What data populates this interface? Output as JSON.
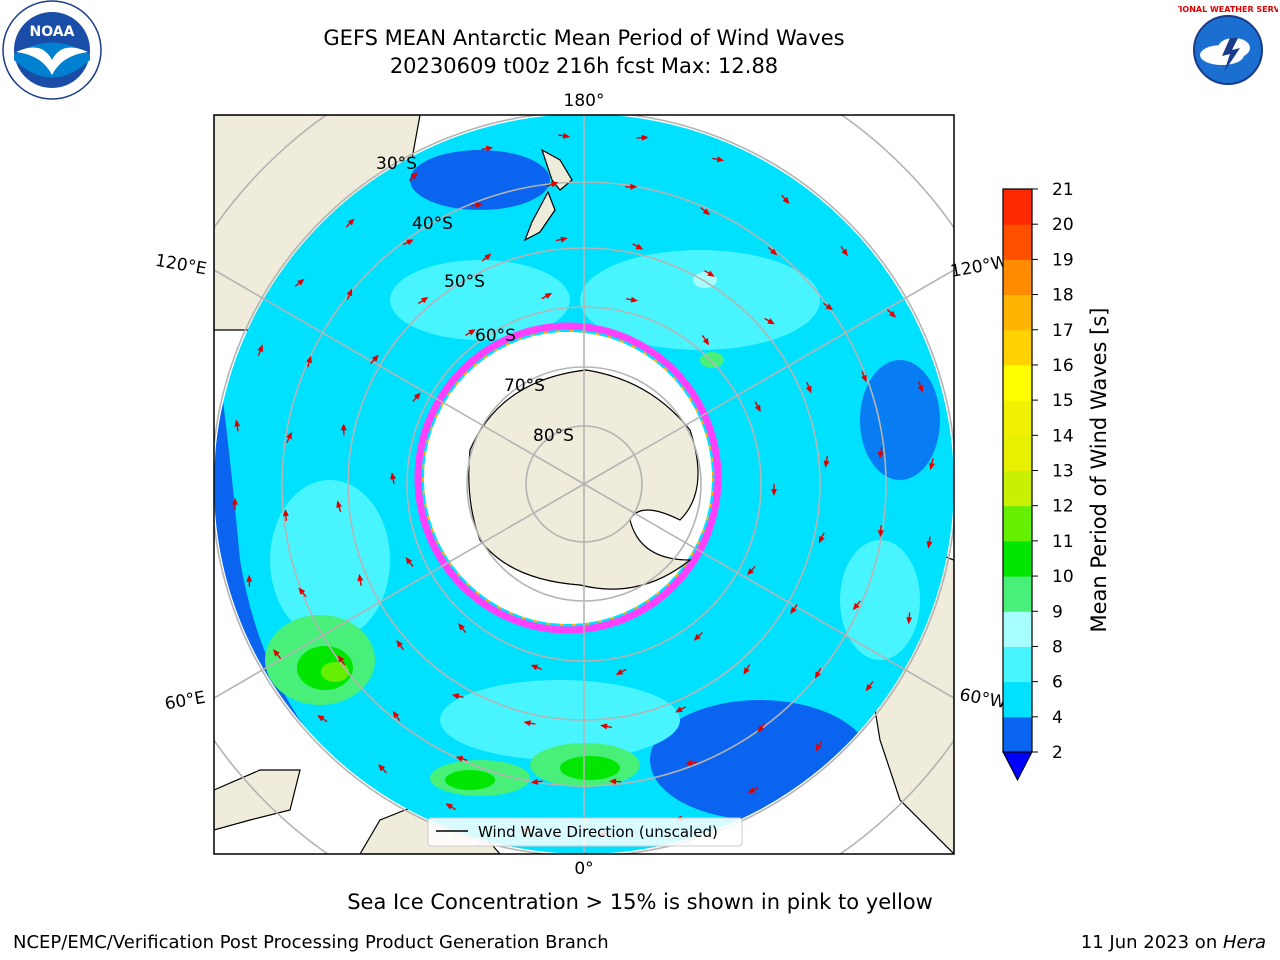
{
  "title": {
    "line1": "GEFS MEAN Antarctic Mean Period of Wind Waves",
    "line2": "20230609 t00z 216h fcst   Max: 12.88"
  },
  "map": {
    "projection": "south-polar-stereographic",
    "longitude_labels": [
      "180°",
      "120°E",
      "120°W",
      "60°E",
      "60°W",
      "0°"
    ],
    "latitude_labels": [
      "30°S",
      "40°S",
      "50°S",
      "60°S",
      "70°S",
      "80°S"
    ],
    "legend_label": "Wind Wave Direction (unscaled)",
    "sea_ice_note": "Sea Ice Concentration > 15% is shown in pink to yellow",
    "colors": {
      "land": "#efecdb",
      "ice_sheet": "#ffffff",
      "arrows": "#e00000",
      "grid": "#b4b4b4"
    }
  },
  "colorbar": {
    "label": "Mean Period of Wind Waves [s]",
    "ticks": [
      "2",
      "4",
      "6",
      "8",
      "9",
      "10",
      "11",
      "12",
      "13",
      "14",
      "15",
      "16",
      "17",
      "18",
      "19",
      "20",
      "21"
    ],
    "colors": [
      "#0a64f0",
      "#00e1ff",
      "#48f5ff",
      "#a8ffff",
      "#48f07a",
      "#00e600",
      "#64f000",
      "#c8f000",
      "#e6f000",
      "#f0f000",
      "#ffff00",
      "#ffd200",
      "#ffb400",
      "#ff8c00",
      "#ff5000",
      "#ff2800",
      "#f00000"
    ],
    "extend_color": "#0000ff"
  },
  "logos": {
    "noaa": "NOAA",
    "nws": "NATIONAL WEATHER SERVICE"
  },
  "footer": {
    "left": "NCEP/EMC/Verification Post Processing Product Generation Branch",
    "right_text": "11 Jun 2023 on ",
    "right_host": "Hera"
  }
}
